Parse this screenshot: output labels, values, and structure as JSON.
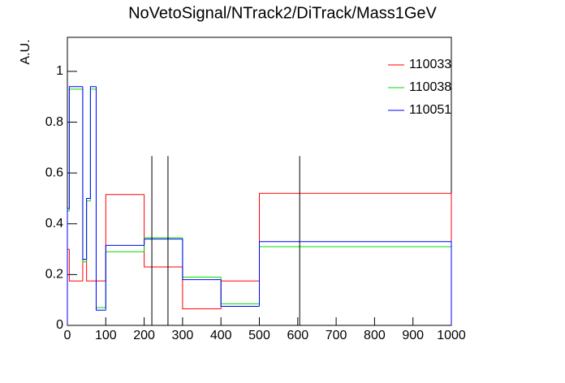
{
  "chart_data": {
    "type": "histogram",
    "title": "NoVetoSignal/NTrack2/DiTrack/Mass1GeV",
    "y_label": "A.U.",
    "bins": [
      0,
      5,
      40,
      50,
      60,
      75,
      100,
      200,
      300,
      400,
      500,
      1000
    ],
    "series": [
      {
        "name": "110033",
        "color": "#ff0000",
        "values": [
          0.3,
          0.175,
          0.26,
          0.175,
          0.175,
          0.175,
          0.515,
          0.23,
          0.065,
          0.175,
          0.52
        ]
      },
      {
        "name": "110038",
        "color": "#00dd00",
        "values": [
          0.45,
          0.93,
          0.25,
          0.49,
          0.93,
          0.07,
          0.29,
          0.345,
          0.19,
          0.085,
          0.31
        ]
      },
      {
        "name": "110051",
        "color": "#0000ff",
        "values": [
          0.46,
          0.94,
          0.26,
          0.5,
          0.94,
          0.06,
          0.315,
          0.34,
          0.18,
          0.075,
          0.33
        ]
      }
    ],
    "vlines": [
      {
        "x": 220,
        "y": 0.667
      },
      {
        "x": 262,
        "y": 0.667
      },
      {
        "x": 605,
        "y": 0.667
      }
    ],
    "xlim": [
      0,
      1000
    ],
    "xticks": [
      0,
      100,
      200,
      300,
      400,
      500,
      600,
      700,
      800,
      900,
      1000
    ],
    "ylim": [
      0,
      1.134
    ],
    "yticks": [
      0,
      0.2,
      0.4,
      0.6,
      0.8,
      1
    ],
    "legend": "top-right"
  }
}
